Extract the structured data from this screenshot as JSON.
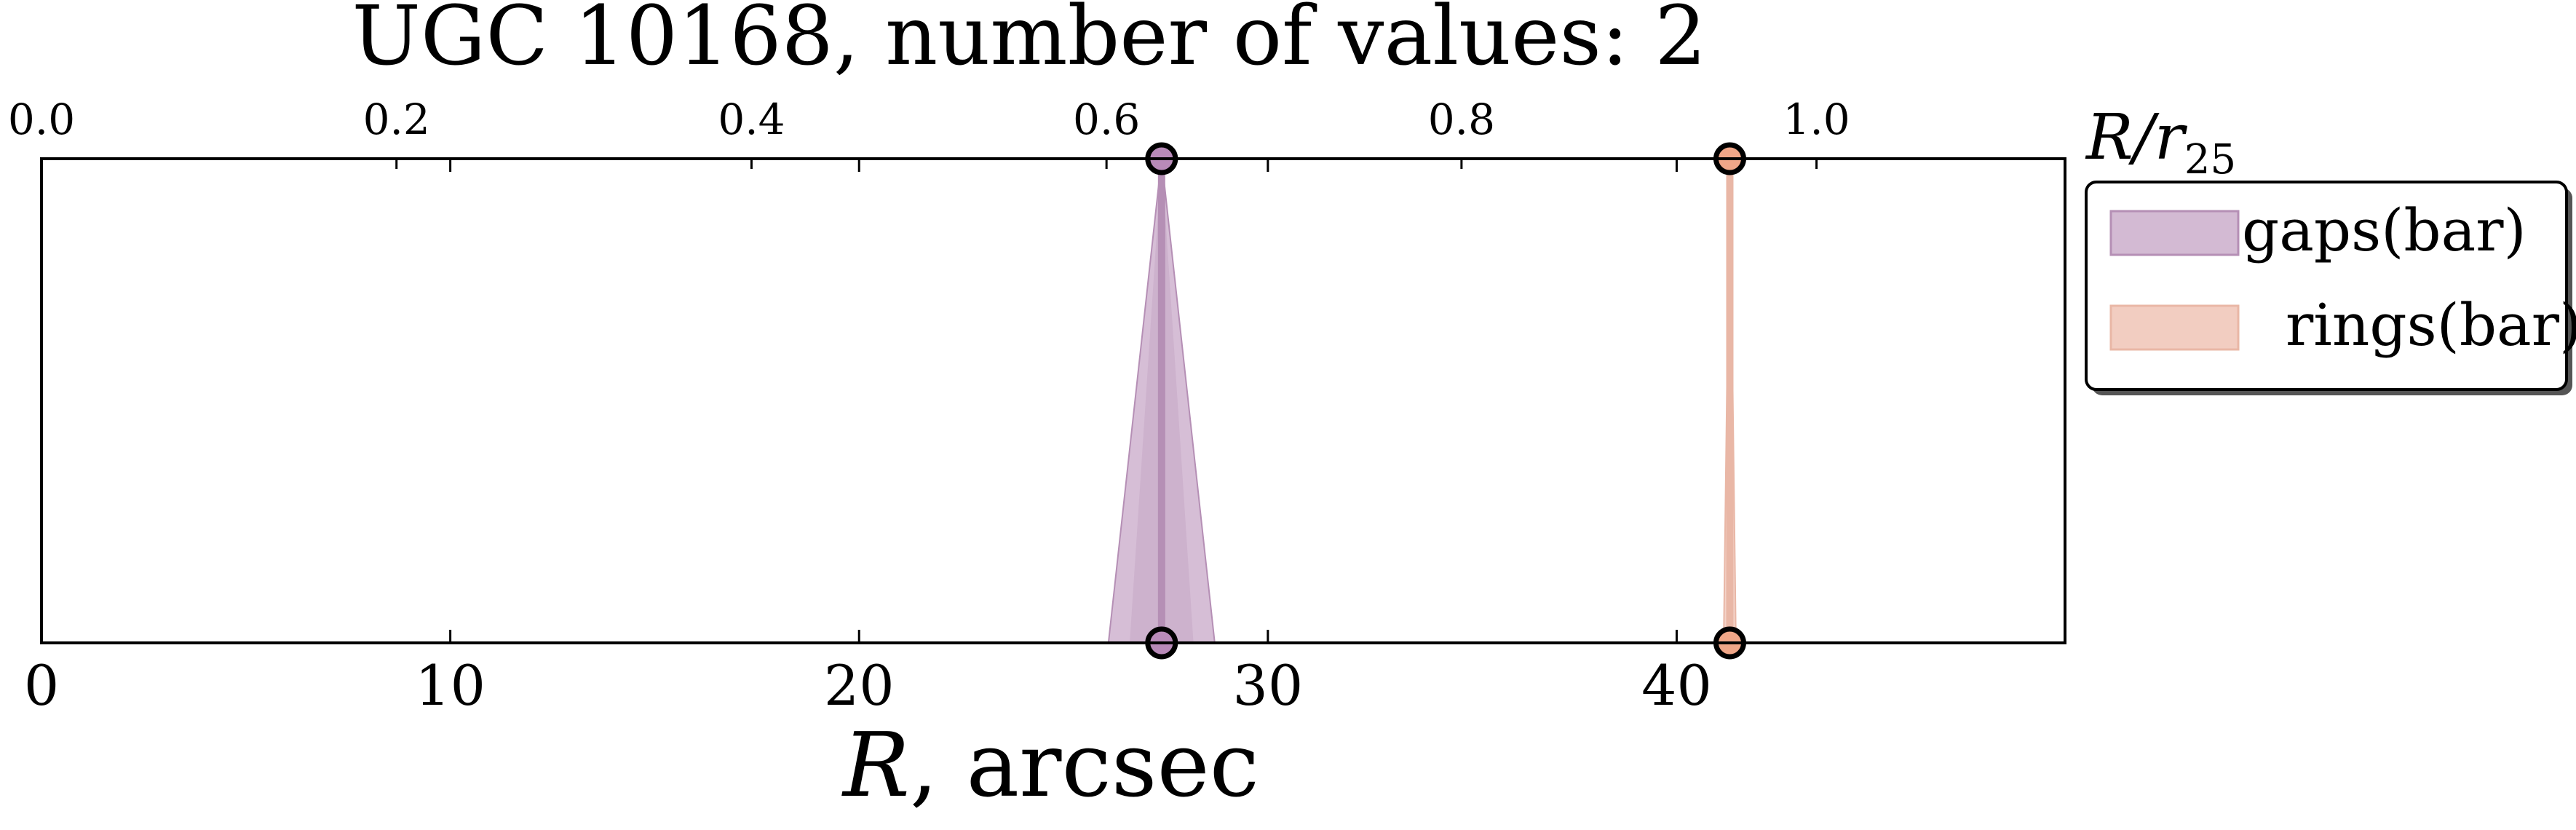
{
  "chart_data": {
    "type": "scatter",
    "title": "UGC 10168, number of values: 2",
    "xlabel_bottom": {
      "var": "R",
      "rest": ", arcsec"
    },
    "xlabel_top": {
      "var": "R/r",
      "sub": "25"
    },
    "xlim": [
      0,
      49.5
    ],
    "top_xlim": [
      0,
      1.14
    ],
    "bottom_ticks": [
      0,
      10,
      20,
      30,
      40
    ],
    "bottom_tick_labels": [
      "0",
      "10",
      "20",
      "30",
      "40"
    ],
    "top_ticks": [
      0.0,
      0.2,
      0.4,
      0.6,
      0.8,
      1.0
    ],
    "top_tick_labels": [
      "0.0",
      "0.2",
      "0.4",
      "0.6",
      "0.8",
      "1.0"
    ],
    "grid": false,
    "legend_placement": "outside-right-top",
    "series": [
      {
        "name": "gaps(bar)",
        "x": 27.4,
        "x_err_bottom": 1.3,
        "color": "#c4a3c4",
        "marker_color": "#b88ab8",
        "line_color": "#b58fb5"
      },
      {
        "name": "rings(bar)",
        "x": 41.3,
        "x_err_bottom": 0.15,
        "color": "#efc1b2",
        "marker_color": "#f0a688",
        "line_color": "#e9b7a6"
      }
    ]
  }
}
